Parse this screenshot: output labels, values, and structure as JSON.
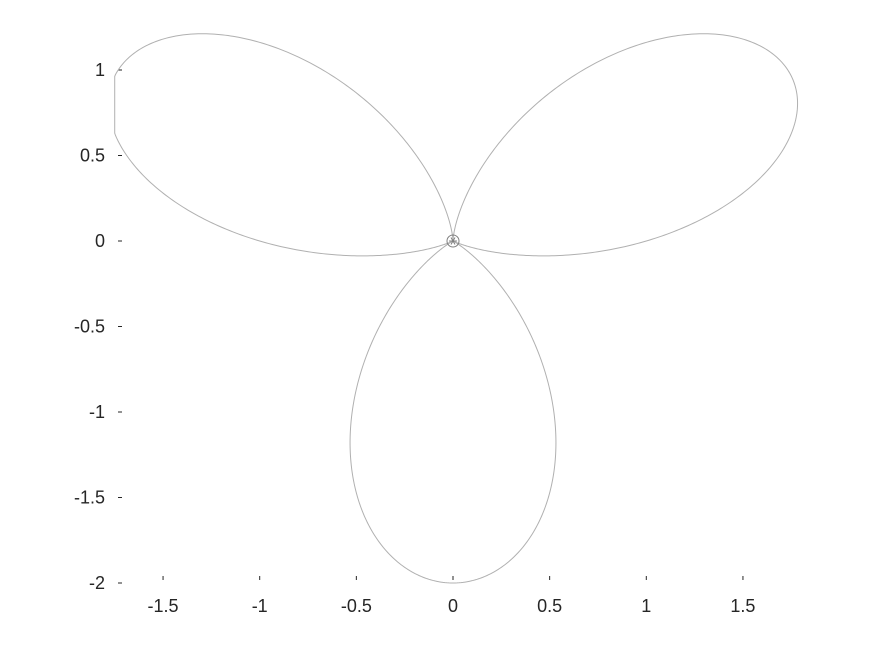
{
  "chart_data": {
    "type": "line",
    "title": "",
    "xlabel": "",
    "ylabel": "",
    "xlim": [
      -1.75,
      1.75
    ],
    "ylim": [
      -2,
      1.13
    ],
    "xticks": [
      -1.5,
      -1,
      -0.5,
      0,
      0.5,
      1,
      1.5
    ],
    "xtick_labels": [
      "-1.5",
      "-1",
      "-0.5",
      "0",
      "0.5",
      "1",
      "1.5"
    ],
    "yticks": [
      1,
      0.5,
      0,
      -0.5,
      -1,
      -1.5,
      -2
    ],
    "ytick_labels": [
      "1",
      "0.5",
      "0",
      "-0.5",
      "-1",
      "-1.5",
      "-2"
    ],
    "grid": false,
    "axis_lines": false,
    "series": [
      {
        "description": "three-petal rose curve r = 2 sin^2(3t/2)... lobes toward upper-left, upper-right and bottom",
        "color": "#b0b0b0",
        "lobe_tips": [
          [
            -1.5,
            1.13
          ],
          [
            1.5,
            1.13
          ],
          [
            0,
            -2
          ]
        ]
      }
    ],
    "center_marker": {
      "x": 0,
      "y": 0,
      "shape": "circle-star",
      "color": "#808080"
    }
  }
}
